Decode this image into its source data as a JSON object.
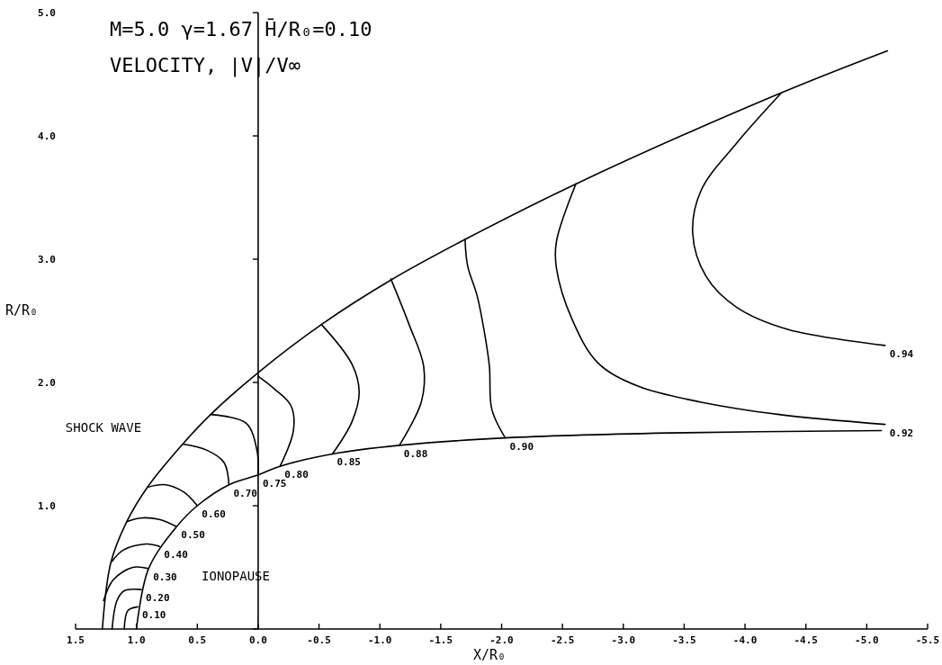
{
  "chart_data": {
    "type": "line",
    "title": "M=5.0   γ=1.67   H̄/R₀=0.10",
    "subtitle": "VELOCITY, |V|/V∞",
    "xlabel": "X/R₀",
    "ylabel": "R/R₀",
    "xlim": [
      1.5,
      -5.5
    ],
    "ylim": [
      0,
      5
    ],
    "xticks": [
      {
        "value": 1.5,
        "label": "1.5"
      },
      {
        "value": 1,
        "label": "1.0"
      },
      {
        "value": 0.5,
        "label": "0.5"
      },
      {
        "value": 0,
        "label": "0.0"
      },
      {
        "value": -0.5,
        "label": "-0.5"
      },
      {
        "value": -1,
        "label": "-1.0"
      },
      {
        "value": -1.5,
        "label": "-1.5"
      },
      {
        "value": -2,
        "label": "-2.0"
      },
      {
        "value": -2.5,
        "label": "-2.5"
      },
      {
        "value": -3,
        "label": "-3.0"
      },
      {
        "value": -3.5,
        "label": "-3.5"
      },
      {
        "value": -4,
        "label": "-4.0"
      },
      {
        "value": -4.5,
        "label": "-4.5"
      },
      {
        "value": -5,
        "label": "-5.0"
      },
      {
        "value": -5.5,
        "label": "-5.5"
      }
    ],
    "yticks": [
      {
        "value": 0,
        "label": null
      },
      {
        "value": 1,
        "label": "1.0"
      },
      {
        "value": 2,
        "label": "2.0"
      },
      {
        "value": 3,
        "label": "3.0"
      },
      {
        "value": 4,
        "label": "4.0"
      },
      {
        "value": 5,
        "label": "5.0"
      }
    ],
    "series": [
      {
        "color": "#000000",
        "x": [
          1.28,
          1.21,
          1.08,
          0.91,
          0.62,
          0.39,
          0,
          -0.52,
          -1.09,
          -1.7,
          -2.61,
          -4.3,
          -5.17
        ],
        "values": [
          0,
          0.54,
          0.87,
          1.15,
          1.5,
          1.74,
          2.08,
          2.47,
          2.83,
          3.16,
          3.61,
          4.35,
          4.69
        ]
      },
      {
        "color": "#000000",
        "x": [
          1,
          0.9,
          0.67,
          0.5,
          0.24,
          0,
          -0.18,
          -0.61,
          -1.16,
          -2.03,
          -3.37,
          -5.12
        ],
        "values": [
          0,
          0.49,
          0.83,
          1,
          1.17,
          1.25,
          1.32,
          1.42,
          1.49,
          1.55,
          1.59,
          1.61
        ]
      },
      {
        "name": "0.10",
        "color": "#000000",
        "x": [
          0.99,
          1.07,
          1.1
        ],
        "values": [
          0.18,
          0.15,
          0
        ]
      },
      {
        "name": "0.20",
        "color": "#000000",
        "x": [
          0.96,
          1.1,
          1.16,
          1.2
        ],
        "values": [
          0.32,
          0.31,
          0.23,
          0
        ]
      },
      {
        "name": "0.30",
        "color": "#000000",
        "x": [
          0.9,
          1.03,
          1.19,
          1.27
        ],
        "values": [
          0.49,
          0.5,
          0.4,
          0.23
        ]
      },
      {
        "name": "0.40",
        "color": "#000000",
        "x": [
          0.81,
          0.92,
          1.11,
          1.2
        ],
        "values": [
          0.67,
          0.69,
          0.64,
          0.55
        ]
      },
      {
        "name": "0.50",
        "color": "#000000",
        "x": [
          0.67,
          0.82,
          0.97,
          1.08
        ],
        "values": [
          0.83,
          0.89,
          0.9,
          0.87
        ]
      },
      {
        "name": "0.60",
        "color": "#000000",
        "x": [
          0.5,
          0.61,
          0.76,
          0.91
        ],
        "values": [
          1,
          1.11,
          1.17,
          1.15
        ]
      },
      {
        "name": "0.70",
        "color": "#000000",
        "x": [
          0.24,
          0.28,
          0.42,
          0.62
        ],
        "values": [
          1.17,
          1.35,
          1.45,
          1.5
        ]
      },
      {
        "name": "0.75",
        "color": "#000000",
        "x": [
          0,
          0.01,
          0.1,
          0.39
        ],
        "values": [
          1.25,
          1.45,
          1.67,
          1.74
        ]
      },
      {
        "name": "0.80",
        "color": "#000000",
        "x": [
          -0.18,
          -0.29,
          -0.27,
          -0.13,
          0
        ],
        "values": [
          1.32,
          1.61,
          1.81,
          1.95,
          2.05
        ]
      },
      {
        "name": "0.85",
        "color": "#000000",
        "x": [
          -0.61,
          -0.77,
          -0.83,
          -0.77,
          -0.52
        ],
        "values": [
          1.42,
          1.68,
          1.92,
          2.15,
          2.47
        ]
      },
      {
        "name": "0.88",
        "color": "#000000",
        "x": [
          -1.16,
          -1.34,
          -1.36,
          -1.24,
          -1.09
        ],
        "values": [
          1.49,
          1.84,
          2.13,
          2.47,
          2.84
        ]
      },
      {
        "name": "0.90",
        "color": "#000000",
        "x": [
          -2.03,
          -1.92,
          -1.9,
          -1.86,
          -1.8,
          -1.72,
          -1.7
        ],
        "values": [
          1.55,
          1.78,
          2.13,
          2.4,
          2.7,
          2.95,
          3.16
        ]
      },
      {
        "name": "0.92",
        "color": "#000000",
        "x": [
          -5.15,
          -4.28,
          -3.64,
          -3.12,
          -2.79,
          -2.58,
          -2.45,
          -2.45,
          -2.61
        ],
        "values": [
          1.66,
          1.74,
          1.84,
          1.97,
          2.16,
          2.51,
          2.93,
          3.14,
          3.61
        ]
      },
      {
        "name": "0.94",
        "color": "#000000",
        "x": [
          -5.15,
          -4.35,
          -3.93,
          -3.68,
          -3.57,
          -3.64,
          -3.93,
          -4.3
        ],
        "values": [
          2.3,
          2.43,
          2.61,
          2.86,
          3.21,
          3.56,
          3.94,
          4.35
        ]
      }
    ],
    "annotations": [
      "SHOCK WAVE",
      "IONOPAUSE"
    ]
  }
}
